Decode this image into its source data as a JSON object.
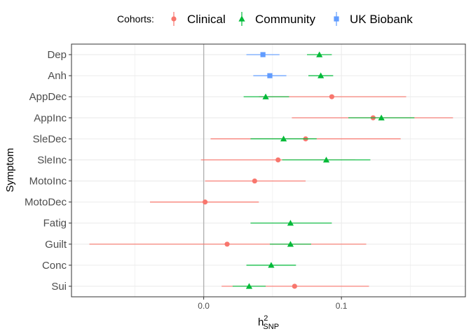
{
  "chart_data": {
    "type": "scatter",
    "xlabel": "h",
    "xlabel_sup": "2",
    "xlabel_sub": "SNP",
    "ylabel": "Symptom",
    "xlim": [
      -0.096,
      0.19
    ],
    "xticks": [
      0.0,
      0.1
    ],
    "xtick_labels": [
      "0.0",
      "0.1"
    ],
    "reference_line_x": 0,
    "grid": true,
    "legend": {
      "position": "top",
      "title": "Cohorts:",
      "entries": [
        "Clinical",
        "Community",
        "UK Biobank"
      ]
    },
    "categories": [
      "Dep",
      "Anh",
      "AppDec",
      "AppInc",
      "SleDec",
      "SleInc",
      "MotoInc",
      "MotoDec",
      "Fatig",
      "Guilt",
      "Conc",
      "Sui"
    ],
    "series": [
      {
        "name": "Clinical",
        "color": "#F8766D",
        "marker": "circle",
        "points": [
          {
            "y": "AppDec",
            "x": 0.093,
            "lo": 0.04,
            "hi": 0.147
          },
          {
            "y": "AppInc",
            "x": 0.123,
            "lo": 0.064,
            "hi": 0.181
          },
          {
            "y": "SleDec",
            "x": 0.074,
            "lo": 0.005,
            "hi": 0.143
          },
          {
            "y": "SleInc",
            "x": 0.054,
            "lo": -0.002,
            "hi": 0.11
          },
          {
            "y": "MotoInc",
            "x": 0.037,
            "lo": 0.001,
            "hi": 0.074
          },
          {
            "y": "MotoDec",
            "x": 0.001,
            "lo": -0.039,
            "hi": 0.04
          },
          {
            "y": "Guilt",
            "x": 0.017,
            "lo": -0.083,
            "hi": 0.118
          },
          {
            "y": "Sui",
            "x": 0.066,
            "lo": 0.013,
            "hi": 0.12
          }
        ]
      },
      {
        "name": "Community",
        "color": "#00BA38",
        "marker": "triangle",
        "points": [
          {
            "y": "Dep",
            "x": 0.084,
            "lo": 0.075,
            "hi": 0.093
          },
          {
            "y": "Anh",
            "x": 0.085,
            "lo": 0.076,
            "hi": 0.094
          },
          {
            "y": "AppDec",
            "x": 0.045,
            "lo": 0.029,
            "hi": 0.062
          },
          {
            "y": "AppInc",
            "x": 0.129,
            "lo": 0.105,
            "hi": 0.153
          },
          {
            "y": "SleDec",
            "x": 0.058,
            "lo": 0.034,
            "hi": 0.082
          },
          {
            "y": "SleInc",
            "x": 0.089,
            "lo": 0.057,
            "hi": 0.121
          },
          {
            "y": "Fatig",
            "x": 0.063,
            "lo": 0.034,
            "hi": 0.093
          },
          {
            "y": "Guilt",
            "x": 0.063,
            "lo": 0.048,
            "hi": 0.078
          },
          {
            "y": "Conc",
            "x": 0.049,
            "lo": 0.031,
            "hi": 0.067
          },
          {
            "y": "Sui",
            "x": 0.033,
            "lo": 0.021,
            "hi": 0.045
          }
        ]
      },
      {
        "name": "UK Biobank",
        "color": "#619CFF",
        "marker": "square",
        "points": [
          {
            "y": "Dep",
            "x": 0.043,
            "lo": 0.031,
            "hi": 0.055
          },
          {
            "y": "Anh",
            "x": 0.048,
            "lo": 0.036,
            "hi": 0.06
          }
        ]
      }
    ]
  }
}
